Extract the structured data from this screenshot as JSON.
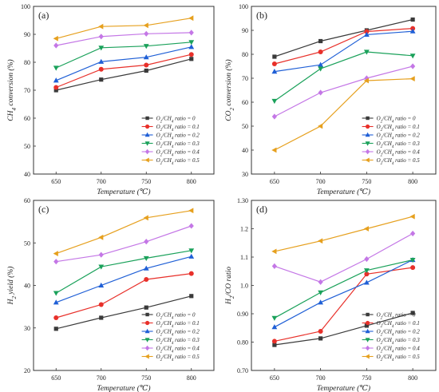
{
  "series_colors": [
    "#3a3a3a",
    "#e8302a",
    "#1f5fd6",
    "#1aa15a",
    "#c477e6",
    "#e6a01e"
  ],
  "marker_shapes": [
    "square",
    "circle",
    "triangle-up",
    "triangle-down",
    "diamond",
    "triangle-left"
  ],
  "chart_data": [
    {
      "type": "line",
      "panel_label": "(a)",
      "xlabel": "Temperature (℃)",
      "ylabel": "CH4 conversion (%)",
      "x": [
        650,
        700,
        750,
        800
      ],
      "xticks": [
        "650",
        "700",
        "750",
        "800"
      ],
      "ylim": [
        40,
        100
      ],
      "yticks": [
        40,
        50,
        60,
        70,
        80,
        90,
        100
      ],
      "legend_position": "bottom-right",
      "series": [
        {
          "name": "O2/CH4 ratio = 0",
          "values": [
            70.0,
            73.8,
            77.0,
            81.2
          ]
        },
        {
          "name": "O2/CH4 ratio = 0.1",
          "values": [
            71.0,
            77.5,
            79.0,
            82.8
          ]
        },
        {
          "name": "O2/CH4 ratio = 0.2",
          "values": [
            73.5,
            80.2,
            81.8,
            85.5
          ]
        },
        {
          "name": "O2/CH4 ratio = 0.3",
          "values": [
            78.0,
            85.2,
            85.8,
            87.2
          ]
        },
        {
          "name": "O2/CH4 ratio = 0.4",
          "values": [
            86.0,
            89.2,
            90.2,
            90.6
          ]
        },
        {
          "name": "O2/CH4 ratio = 0.5",
          "values": [
            88.5,
            92.8,
            93.2,
            95.8
          ]
        }
      ]
    },
    {
      "type": "line",
      "panel_label": "(b)",
      "xlabel": "Temperature (℃)",
      "ylabel": "CO2 conversion (%)",
      "x": [
        650,
        700,
        750,
        800
      ],
      "xticks": [
        "650",
        "700",
        "750",
        "800"
      ],
      "ylim": [
        30,
        100
      ],
      "yticks": [
        30,
        40,
        50,
        60,
        70,
        80,
        90,
        100
      ],
      "legend_position": "bottom-right",
      "series": [
        {
          "name": "O2/CH4 ratio = 0",
          "values": [
            79.0,
            85.5,
            90.0,
            94.5
          ]
        },
        {
          "name": "O2/CH4 ratio = 0.1",
          "values": [
            76.0,
            81.0,
            89.5,
            90.8
          ]
        },
        {
          "name": "O2/CH4 ratio = 0.2",
          "values": [
            72.8,
            75.6,
            88.2,
            89.6
          ]
        },
        {
          "name": "O2/CH4 ratio = 0.3",
          "values": [
            60.5,
            74.0,
            81.0,
            79.4
          ]
        },
        {
          "name": "O2/CH4 ratio = 0.4",
          "values": [
            54.0,
            64.0,
            70.0,
            75.0
          ]
        },
        {
          "name": "O2/CH4 ratio = 0.5",
          "values": [
            40.0,
            50.0,
            69.0,
            69.8
          ]
        }
      ]
    },
    {
      "type": "line",
      "panel_label": "(c)",
      "xlabel": "Temperature (℃)",
      "ylabel": "H2 yield (%)",
      "x": [
        650,
        700,
        750,
        800
      ],
      "xticks": [
        "650",
        "700",
        "750",
        "800"
      ],
      "ylim": [
        20,
        60
      ],
      "yticks": [
        20,
        30,
        40,
        50,
        60
      ],
      "legend_position": "bottom-right",
      "series": [
        {
          "name": "O2/CH4 ratio = 0",
          "values": [
            29.8,
            32.4,
            34.8,
            37.5
          ]
        },
        {
          "name": "O2/CH4 ratio = 0.1",
          "values": [
            32.4,
            35.5,
            41.4,
            42.8
          ]
        },
        {
          "name": "O2/CH4 ratio = 0.2",
          "values": [
            36.0,
            40.0,
            44.0,
            46.8
          ]
        },
        {
          "name": "O2/CH4 ratio = 0.3",
          "values": [
            38.2,
            44.4,
            46.4,
            48.2
          ]
        },
        {
          "name": "O2/CH4 ratio = 0.4",
          "values": [
            45.6,
            47.2,
            50.3,
            54.0
          ]
        },
        {
          "name": "O2/CH4 ratio = 0.5",
          "values": [
            47.5,
            51.3,
            55.9,
            57.6
          ]
        }
      ]
    },
    {
      "type": "line",
      "panel_label": "(d)",
      "xlabel": "Temperature (℃)",
      "ylabel": "H2/CO ratio",
      "x": [
        650,
        700,
        750,
        800
      ],
      "xticks": [
        "650",
        "700",
        "750",
        "800"
      ],
      "ylim": [
        0.7,
        1.3
      ],
      "yticks": [
        0.7,
        0.8,
        0.9,
        1.0,
        1.1,
        1.2,
        1.3
      ],
      "ytick_labels": [
        "0.70",
        "0.80",
        "0.90",
        "1.0",
        "1.1",
        "1.2",
        "1.30"
      ],
      "legend_position": "bottom-right",
      "series": [
        {
          "name": "O2/CH4 ratio = 0",
          "values": [
            0.79,
            0.813,
            0.858,
            0.903
          ]
        },
        {
          "name": "O2/CH4 ratio = 0.1",
          "values": [
            0.803,
            0.838,
            1.04,
            1.063
          ]
        },
        {
          "name": "O2/CH4 ratio = 0.2",
          "values": [
            0.853,
            0.94,
            1.01,
            1.09
          ]
        },
        {
          "name": "O2/CH4 ratio = 0.3",
          "values": [
            0.885,
            0.975,
            1.053,
            1.09
          ]
        },
        {
          "name": "O2/CH4 ratio = 0.4",
          "values": [
            1.068,
            1.012,
            1.093,
            1.183
          ]
        },
        {
          "name": "O2/CH4 ratio = 0.5",
          "values": [
            1.12,
            1.157,
            1.2,
            1.243
          ]
        }
      ]
    }
  ]
}
